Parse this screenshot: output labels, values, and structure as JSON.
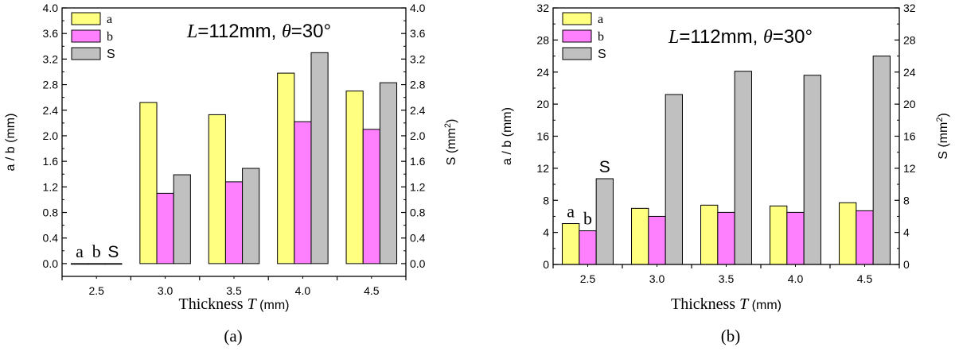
{
  "chart_data": [
    {
      "type": "bar",
      "panel_label": "(a)",
      "annotation": {
        "L_symbol": "L",
        "L_value": "=112mm,",
        "theta_symbol": "θ",
        "theta_value": "=30°"
      },
      "categories": [
        "2.5",
        "3.0",
        "3.5",
        "4.0",
        "4.5"
      ],
      "series": [
        {
          "name": "a",
          "color": "#ffff80",
          "values": [
            0.0,
            2.52,
            2.33,
            2.98,
            2.7
          ]
        },
        {
          "name": "b",
          "color": "#ff80ff",
          "values": [
            0.0,
            1.1,
            1.28,
            2.22,
            2.1
          ]
        },
        {
          "name": "S",
          "color": "#c0c0c0",
          "values": [
            0.0,
            1.39,
            1.49,
            3.3,
            2.83
          ]
        }
      ],
      "bar_labels": [
        "a",
        "b",
        "S"
      ],
      "xlabel_prefix": "Thickness ",
      "xlabel_var": "T",
      "xlabel_unit": " (mm)",
      "ylabel_left": "a / b (mm)",
      "ylabel_right_prefix": "S (mm",
      "ylabel_right_sup": "2",
      "ylabel_right_suffix": ")",
      "ylim": [
        -0.2,
        4.0
      ],
      "yticks": [
        "0.0",
        "0.4",
        "0.8",
        "1.2",
        "1.6",
        "2.0",
        "2.4",
        "2.8",
        "3.2",
        "3.6",
        "4.0"
      ],
      "ytick_values": [
        0,
        0.4,
        0.8,
        1.2,
        1.6,
        2.0,
        2.4,
        2.8,
        3.2,
        3.6,
        4.0
      ],
      "legend_position": "top-left",
      "grid": false
    },
    {
      "type": "bar",
      "panel_label": "(b)",
      "annotation": {
        "L_symbol": "L",
        "L_value": "=112mm,",
        "theta_symbol": "θ",
        "theta_value": "=30°"
      },
      "categories": [
        "2.5",
        "3.0",
        "3.5",
        "4.0",
        "4.5"
      ],
      "series": [
        {
          "name": "a",
          "color": "#ffff80",
          "values": [
            5.1,
            7.0,
            7.4,
            7.3,
            7.7
          ]
        },
        {
          "name": "b",
          "color": "#ff80ff",
          "values": [
            4.2,
            6.0,
            6.5,
            6.5,
            6.7
          ]
        },
        {
          "name": "S",
          "color": "#c0c0c0",
          "values": [
            10.7,
            21.2,
            24.1,
            23.6,
            26.0
          ]
        }
      ],
      "bar_labels": [
        "a",
        "b",
        "S"
      ],
      "xlabel_prefix": "Thickness ",
      "xlabel_var": "T",
      "xlabel_unit": " (mm)",
      "ylabel_left": "a / b (mm)",
      "ylabel_right_prefix": "S (mm",
      "ylabel_right_sup": "2",
      "ylabel_right_suffix": ")",
      "ylim": [
        0,
        32
      ],
      "yticks": [
        "0",
        "4",
        "8",
        "12",
        "16",
        "20",
        "24",
        "28",
        "32"
      ],
      "ytick_values": [
        0,
        4,
        8,
        12,
        16,
        20,
        24,
        28,
        32
      ],
      "legend_position": "top-left",
      "grid": false
    }
  ]
}
